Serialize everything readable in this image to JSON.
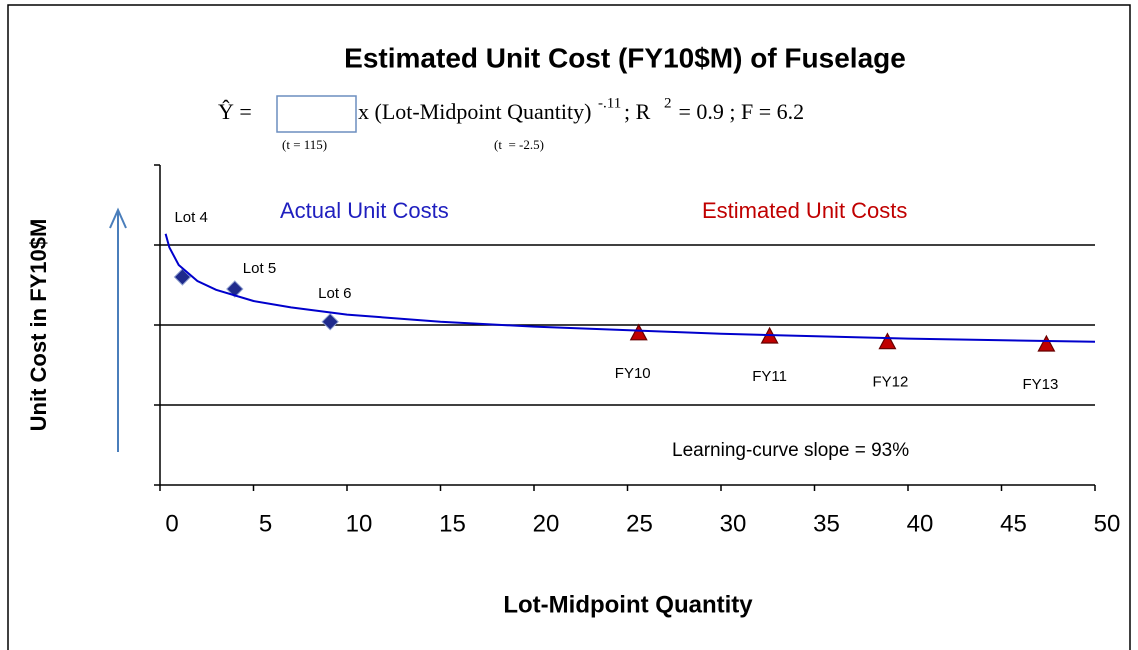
{
  "chart_data": {
    "type": "scatter",
    "title": "Estimated Unit Cost (FY10$M) of  Fuselage",
    "equation": {
      "lhs": "Ŷ =",
      "body": "x (Lot-Midpoint Quantity)",
      "exponent": "-.11",
      "r_label": "; R",
      "r_exponent": "2",
      "rest": " = 0.9 ; F = 6.2"
    },
    "t_stats": [
      "(t = 115)",
      "(t  = -2.5)"
    ],
    "xlabel": "Lot-Midpoint Quantity",
    "ylabel": "Unit Cost in FY10$M",
    "xlim": [
      0,
      50
    ],
    "xticks": [
      0,
      5,
      10,
      15,
      20,
      25,
      30,
      35,
      40,
      45,
      50
    ],
    "ylim": [
      0,
      4
    ],
    "yticks": [
      0,
      1,
      2,
      3,
      4
    ],
    "ytick_labels": false,
    "grid": true,
    "annotations": [
      {
        "text": "Actual Unit Costs",
        "color": "#1f1fbf"
      },
      {
        "text": "Estimated Unit Costs",
        "color": "#c00000"
      },
      {
        "text": "Learning-curve slope = 93%",
        "color": "#000000"
      }
    ],
    "series": [
      {
        "marker": "diamond",
        "color": "#1f2a8c",
        "x": [
          1.2,
          4.0,
          9.1
        ],
        "values": [
          2.6,
          2.45,
          2.04
        ],
        "labels": [
          "Lot 4",
          "Lot 5",
          "Lot 6"
        ]
      },
      {
        "marker": "triangle",
        "color": "#c00000",
        "x": [
          25.6,
          32.6,
          38.9,
          47.4
        ],
        "values": [
          1.89,
          1.85,
          1.78,
          1.75
        ],
        "labels": [
          "FY10",
          "FY11",
          "FY12",
          "FY13"
        ]
      },
      {
        "marker": "line",
        "color": "#0000cc",
        "x": [
          0.3,
          0.5,
          1,
          2,
          3,
          5,
          7,
          10,
          15,
          20,
          30,
          40,
          50
        ],
        "values": [
          3.14,
          2.97,
          2.75,
          2.55,
          2.44,
          2.3,
          2.22,
          2.13,
          2.04,
          1.98,
          1.89,
          1.83,
          1.79
        ]
      }
    ]
  }
}
